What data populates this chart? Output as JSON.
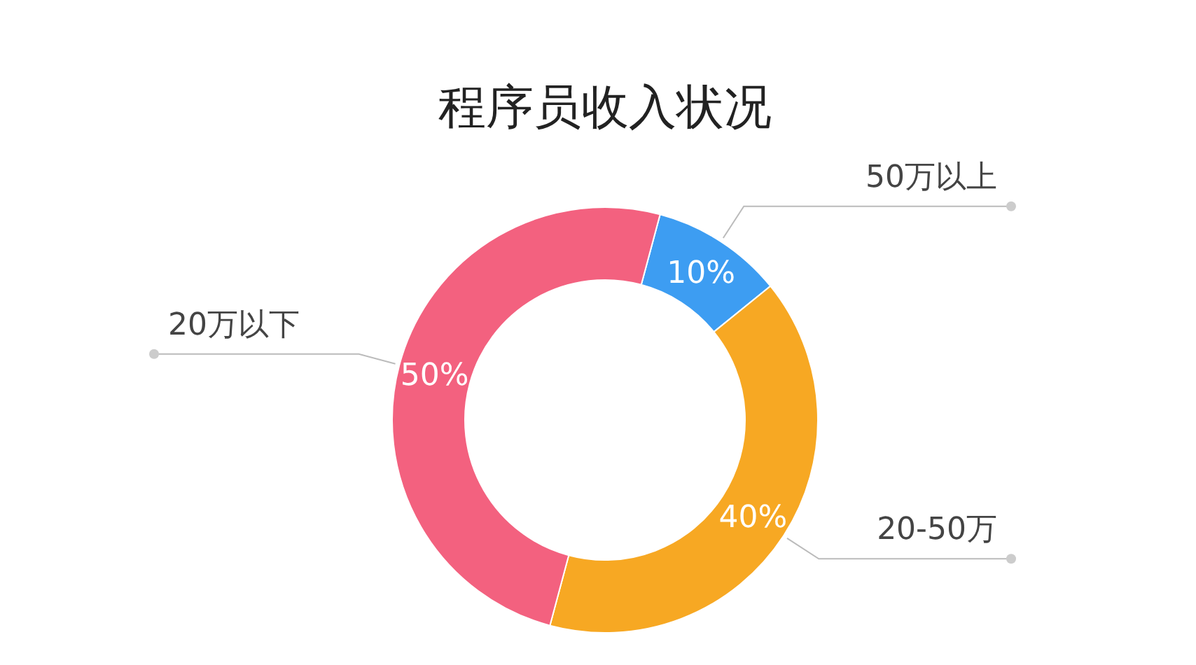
{
  "chart_data": {
    "type": "donut",
    "title": "程序员收入状况",
    "categories": [
      "50万以上",
      "20-50万",
      "20万以下"
    ],
    "values": [
      10,
      40,
      50
    ],
    "colors": [
      "#3d9df2",
      "#f7a823",
      "#f3617f"
    ],
    "value_labels": [
      "10%",
      "40%",
      "50%"
    ]
  }
}
